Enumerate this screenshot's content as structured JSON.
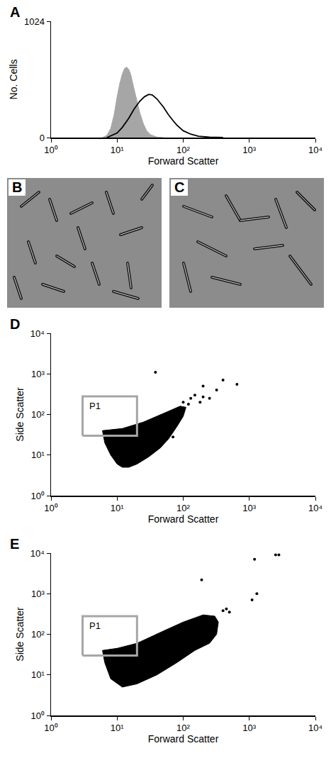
{
  "chart_data": [
    {
      "type": "line",
      "panel": "A",
      "x_label": "Forward Scatter",
      "y_label": "No. Cells",
      "log": "x",
      "xlim": [
        1,
        10000
      ],
      "xticks": [
        {
          "value": 1,
          "label": "10⁰"
        },
        {
          "value": 10,
          "label": "10¹"
        },
        {
          "value": 100,
          "label": "10²"
        },
        {
          "value": 1000,
          "label": "10³"
        },
        {
          "value": 10000,
          "label": "10⁴"
        }
      ],
      "ylim": [
        0,
        1024
      ],
      "yticks": [
        0,
        1024
      ],
      "series": [
        {
          "type": "area",
          "color": "#a6a6a6",
          "x": [
            6,
            7,
            8,
            9,
            10,
            11,
            12,
            13,
            14,
            15,
            16,
            17,
            18,
            20,
            22,
            25,
            28,
            32,
            40,
            50
          ],
          "values": [
            0,
            20,
            80,
            200,
            360,
            480,
            560,
            610,
            620,
            600,
            560,
            500,
            430,
            320,
            220,
            120,
            60,
            25,
            5,
            0
          ]
        },
        {
          "type": "line",
          "color": "#000000",
          "x": [
            7,
            10,
            12,
            15,
            18,
            22,
            26,
            30,
            34,
            40,
            50,
            60,
            70,
            80,
            100,
            130,
            170,
            250,
            400
          ],
          "values": [
            0,
            40,
            90,
            170,
            250,
            320,
            360,
            380,
            375,
            340,
            270,
            200,
            150,
            110,
            60,
            30,
            12,
            3,
            0
          ]
        }
      ]
    },
    {
      "type": "scatter",
      "panel": "D",
      "x_label": "Forward Scatter",
      "y_label": "Side Scatter",
      "log": true,
      "xlim": [
        1,
        10000
      ],
      "ylim": [
        1,
        10000
      ],
      "xticks": [
        {
          "value": 1,
          "label": "10⁰"
        },
        {
          "value": 10,
          "label": "10¹"
        },
        {
          "value": 100,
          "label": "10²"
        },
        {
          "value": 1000,
          "label": "10³"
        },
        {
          "value": 10000,
          "label": "10⁴"
        }
      ],
      "yticks": [
        {
          "value": 1,
          "label": "10⁰"
        },
        {
          "value": 10,
          "label": "10¹"
        },
        {
          "value": 100,
          "label": "10²"
        },
        {
          "value": 1000,
          "label": "10³"
        },
        {
          "value": 10000,
          "label": "10⁴"
        }
      ],
      "series": [
        {
          "type": "area",
          "color": "#000000",
          "x": [
            6,
            6.5,
            8,
            10,
            12,
            15,
            20,
            30,
            45,
            60,
            80,
            100,
            110,
            90,
            60,
            40,
            25,
            18,
            12,
            8,
            6
          ],
          "values": [
            40,
            20,
            10,
            6,
            5,
            5,
            6,
            9,
            15,
            25,
            50,
            90,
            150,
            160,
            120,
            90,
            65,
            55,
            45,
            42,
            40
          ]
        },
        {
          "type": "scatter",
          "color": "#000000",
          "x": [
            38,
            200,
            320,
            400,
            650,
            200,
            130,
            150,
            180,
            100,
            120,
            250,
            70
          ],
          "values": [
            1100,
            500,
            400,
            700,
            550,
            270,
            250,
            300,
            200,
            200,
            180,
            250,
            28
          ]
        }
      ],
      "gate": {
        "label": "P1",
        "color": "#a6a6a6",
        "x": [
          3,
          20
        ],
        "y": [
          30,
          280
        ]
      }
    },
    {
      "type": "scatter",
      "panel": "E",
      "x_label": "Forward Scatter",
      "y_label": "Side Scatter",
      "log": true,
      "xlim": [
        1,
        10000
      ],
      "ylim": [
        1,
        10000
      ],
      "xticks": [
        {
          "value": 1,
          "label": "10⁰"
        },
        {
          "value": 10,
          "label": "10¹"
        },
        {
          "value": 100,
          "label": "10²"
        },
        {
          "value": 1000,
          "label": "10³"
        },
        {
          "value": 10000,
          "label": "10⁴"
        }
      ],
      "yticks": [
        {
          "value": 1,
          "label": "10⁰"
        },
        {
          "value": 10,
          "label": "10¹"
        },
        {
          "value": 100,
          "label": "10²"
        },
        {
          "value": 1000,
          "label": "10³"
        },
        {
          "value": 10000,
          "label": "10⁴"
        }
      ],
      "series": [
        {
          "type": "area",
          "color": "#000000",
          "x": [
            6,
            6.5,
            8,
            12,
            20,
            40,
            80,
            150,
            250,
            320,
            340,
            300,
            200,
            100,
            50,
            20,
            10,
            6
          ],
          "values": [
            40,
            20,
            8,
            5,
            6,
            10,
            20,
            40,
            60,
            100,
            200,
            280,
            300,
            200,
            120,
            60,
            45,
            40
          ]
        },
        {
          "type": "scatter",
          "color": "#000000",
          "x": [
            190,
            1100,
            1200,
            1300,
            2500,
            2800,
            500,
            450,
            400
          ],
          "values": [
            2200,
            700,
            7000,
            1000,
            9000,
            9000,
            350,
            420,
            380
          ]
        }
      ],
      "gate": {
        "label": "P1",
        "color": "#a6a6a6",
        "x": [
          3,
          20
        ],
        "y": [
          30,
          280
        ]
      }
    }
  ],
  "images": [
    {
      "panel": "B"
    },
    {
      "panel": "C"
    }
  ]
}
